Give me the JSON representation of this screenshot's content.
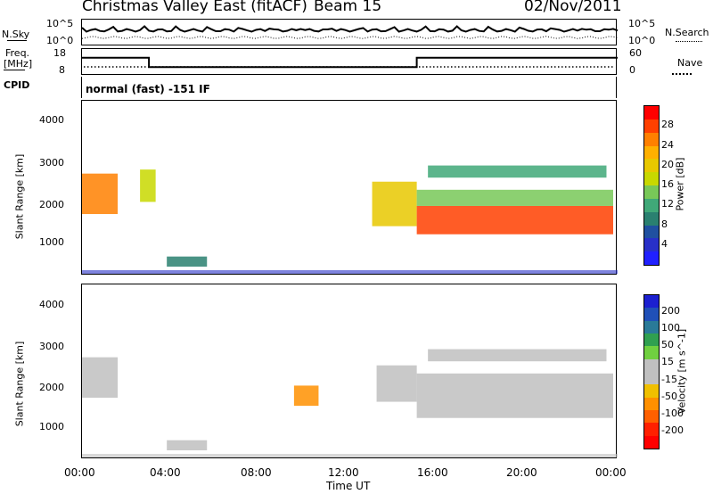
{
  "header": {
    "title": "Christmas Valley East (fitACF)",
    "beam": "Beam 15",
    "date": "02/Nov/2011"
  },
  "nsky_panel": {
    "left_label": "N.Sky",
    "right_label": "N.Search",
    "left_ticks": [
      "10^5",
      "10^0"
    ],
    "right_ticks": [
      "10^5",
      "10^0"
    ]
  },
  "freq_panel": {
    "left_label_1": "Freq.",
    "left_label_2": "[MHz]",
    "right_label": "Nave",
    "left_ticks": [
      "18",
      "8"
    ],
    "right_ticks": [
      "60",
      "0"
    ]
  },
  "cpid": {
    "label": "CPID",
    "text": "normal (fast) -151 IF"
  },
  "power_panel": {
    "ylabel": "Slant Range [km]",
    "yticks": [
      "4000",
      "3000",
      "2000",
      "1000"
    ],
    "cbar_label": "Power [dB]",
    "cbar_ticks": [
      "28",
      "24",
      "20",
      "16",
      "12",
      "8",
      "4"
    ],
    "cbar_colors": [
      "#ff0000",
      "#ff4000",
      "#ff8000",
      "#ffb000",
      "#e8c800",
      "#c8d800",
      "#78c858",
      "#40a878",
      "#2a8070",
      "#2050a0",
      "#2830c8",
      "#2020ff"
    ]
  },
  "velocity_panel": {
    "ylabel": "Slant Range [km]",
    "yticks": [
      "4000",
      "3000",
      "2000",
      "1000"
    ],
    "cbar_label": "Velocity [m s^-1]",
    "cbar_ticks": [
      "200",
      "100",
      "50",
      "15",
      "-15",
      "-50",
      "-100",
      "-200"
    ],
    "cbar_colors": [
      "#1c20d0",
      "#2050b8",
      "#2a7a98",
      "#30a050",
      "#70d040",
      "#c0c0c0",
      "#c0c0c0",
      "#f0c000",
      "#ff9000",
      "#ff6000",
      "#ff2000",
      "#ff0000"
    ]
  },
  "xaxis": {
    "ticks": [
      "00:00",
      "04:00",
      "08:00",
      "12:00",
      "16:00",
      "20:00",
      "00:00"
    ],
    "label": "Time UT"
  },
  "chart_data": {
    "type": "heatmap",
    "title": "Christmas Valley East (fitACF)",
    "subtitle": "Beam 15",
    "date": "02/Nov/2011",
    "xlabel": "Time UT",
    "ylabel": "Slant Range [km]",
    "xlim_hours": [
      0,
      24
    ],
    "ylim_km": [
      180,
      4500
    ],
    "frequency_mhz_segments": [
      {
        "start_h": 0,
        "end_h": 3,
        "freq": 15
      },
      {
        "start_h": 3,
        "end_h": 15,
        "freq": 11
      },
      {
        "start_h": 15,
        "end_h": 24,
        "freq": 15
      }
    ],
    "power_features": [
      {
        "t0": 0.0,
        "t1": 1.6,
        "r0": 1700,
        "r1": 2700,
        "db": 24
      },
      {
        "t0": 2.6,
        "t1": 3.3,
        "r0": 2000,
        "r1": 2800,
        "db": 16
      },
      {
        "t0": 3.8,
        "t1": 5.6,
        "r0": 400,
        "r1": 650,
        "db": 8
      },
      {
        "t0": 13.0,
        "t1": 15.0,
        "r0": 1400,
        "r1": 2500,
        "db": 20
      },
      {
        "t0": 15.0,
        "t1": 23.8,
        "r0": 1200,
        "r1": 1900,
        "db": 28
      },
      {
        "t0": 15.0,
        "t1": 23.8,
        "r0": 1900,
        "r1": 2300,
        "db": 14
      },
      {
        "t0": 15.5,
        "t1": 23.5,
        "r0": 2600,
        "r1": 2900,
        "db": 10
      }
    ],
    "velocity_features": [
      {
        "t0": 0.0,
        "t1": 1.6,
        "r0": 1700,
        "r1": 2700,
        "v": 0
      },
      {
        "t0": 3.8,
        "t1": 5.6,
        "r0": 400,
        "r1": 650,
        "v": 40
      },
      {
        "t0": 9.5,
        "t1": 10.6,
        "r0": 1500,
        "r1": 2000,
        "v": -90
      },
      {
        "t0": 13.2,
        "t1": 15.0,
        "r0": 1600,
        "r1": 2500,
        "v": 40
      },
      {
        "t0": 15.0,
        "t1": 23.8,
        "r0": 1200,
        "r1": 2300,
        "v": 0
      },
      {
        "t0": 15.5,
        "t1": 23.5,
        "r0": 2600,
        "r1": 2900,
        "v": -20
      }
    ]
  }
}
